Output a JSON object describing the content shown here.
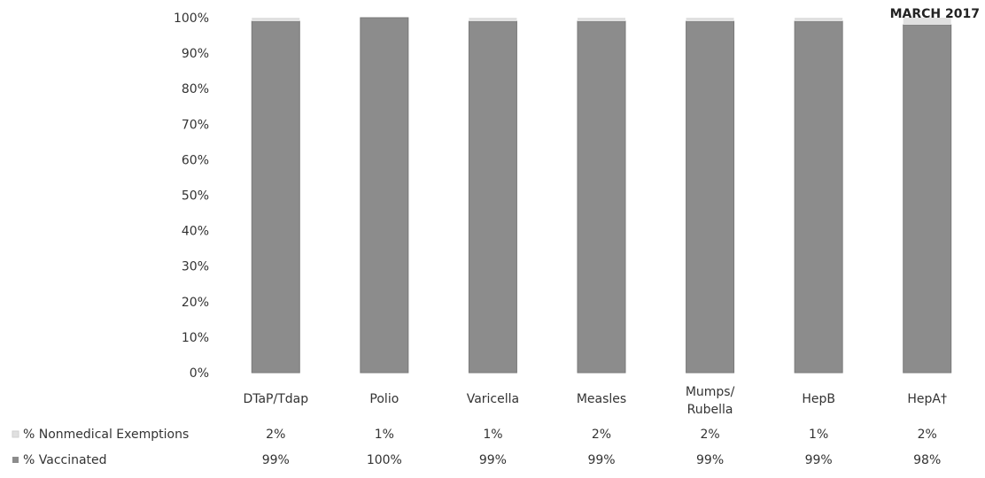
{
  "chart_data": {
    "type": "bar",
    "stacked": true,
    "title": "MARCH 2017",
    "categories": [
      "DTaP/Tdap",
      "Polio",
      "Varicella",
      "Measles",
      "Mumps/\nRubella",
      "HepB",
      "HepA†"
    ],
    "y_tick_labels": [
      "0%",
      "10%",
      "20%",
      "30%",
      "40%",
      "50%",
      "60%",
      "70%",
      "80%",
      "90%",
      "100%"
    ],
    "ylim": [
      0,
      100
    ],
    "legend_position": "data-table-left",
    "grid": false,
    "series": [
      {
        "name": "% Vaccinated",
        "color": "#8c8c8c",
        "values": [
          99,
          100,
          99,
          99,
          99,
          99,
          98
        ],
        "labels": [
          "99%",
          "100%",
          "99%",
          "99%",
          "99%",
          "99%",
          "98%"
        ]
      },
      {
        "name": "% Nonmedical Exemptions",
        "color": "#e0e0e0",
        "values": [
          2,
          1,
          1,
          2,
          2,
          1,
          2
        ],
        "labels": [
          "2%",
          "1%",
          "1%",
          "2%",
          "2%",
          "1%",
          "2%"
        ]
      }
    ]
  }
}
